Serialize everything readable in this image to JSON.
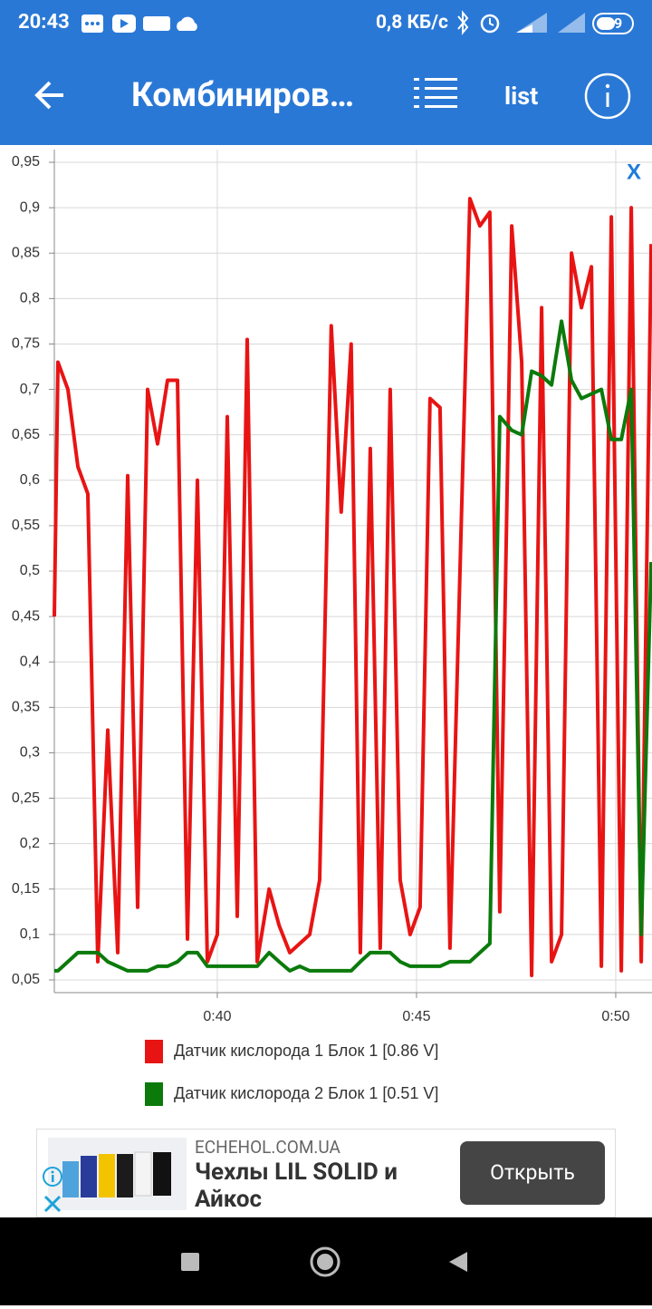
{
  "status_bar": {
    "time": "20:43",
    "speed": "0,8 КБ/с",
    "battery": "39"
  },
  "app_bar": {
    "title": "Комбиниров…",
    "list": "list"
  },
  "chart_close": "X",
  "ad": {
    "domain": "ECHEHOL.COM.UA",
    "headline": "Чехлы LIL SOLID и Айкос",
    "button": "Открыть"
  },
  "chart_data": {
    "type": "line",
    "x": [
      35.91,
      36,
      36.25,
      36.5,
      36.75,
      37,
      37.25,
      37.5,
      37.75,
      38,
      38.25,
      38.5,
      38.75,
      39,
      39.25,
      39.5,
      39.75,
      40,
      40.25,
      40.5,
      40.75,
      41,
      41.3,
      41.55,
      41.82,
      42.07,
      42.32,
      42.57,
      42.86,
      43.11,
      43.36,
      43.59,
      43.84,
      44.09,
      44.34,
      44.59,
      44.84,
      45.09,
      45.34,
      45.59,
      45.84,
      46.34,
      46.59,
      46.84,
      47.09,
      47.39,
      47.64,
      47.89,
      48.14,
      48.39,
      48.64,
      48.89,
      49.14,
      49.39,
      49.64,
      49.89,
      50.14,
      50.39,
      50.64,
      50.89
    ],
    "series": [
      {
        "name": "Датчик кислорода 1 Блок 1 [0.86 V]",
        "color": "#e81414",
        "values": [
          0.45,
          0.73,
          0.7,
          0.615,
          0.585,
          0.07,
          0.325,
          0.08,
          0.605,
          0.13,
          0.7,
          0.64,
          0.71,
          0.71,
          0.095,
          0.6,
          0.07,
          0.1,
          0.67,
          0.12,
          0.755,
          0.07,
          0.15,
          0.11,
          0.08,
          0.09,
          0.1,
          0.16,
          0.77,
          0.565,
          0.75,
          0.08,
          0.635,
          0.085,
          0.7,
          0.16,
          0.1,
          0.13,
          0.69,
          0.68,
          0.085,
          0.91,
          0.88,
          0.895,
          0.125,
          0.88,
          0.73,
          0.055,
          0.79,
          0.07,
          0.1,
          0.85,
          0.79,
          0.835,
          0.065,
          0.89,
          0.06,
          0.9,
          0.07,
          0.86
        ]
      },
      {
        "name": "Датчик кислорода 2 Блок 1 [0.51 V]",
        "color": "#0b7a0b",
        "values": [
          0.06,
          0.06,
          0.07,
          0.08,
          0.08,
          0.08,
          0.07,
          0.065,
          0.06,
          0.06,
          0.06,
          0.065,
          0.065,
          0.07,
          0.08,
          0.08,
          0.065,
          0.065,
          0.065,
          0.065,
          0.065,
          0.065,
          0.08,
          0.07,
          0.06,
          0.065,
          0.06,
          0.06,
          0.06,
          0.06,
          0.06,
          0.07,
          0.08,
          0.08,
          0.08,
          0.07,
          0.065,
          0.065,
          0.065,
          0.065,
          0.07,
          0.07,
          0.08,
          0.09,
          0.67,
          0.655,
          0.65,
          0.72,
          0.715,
          0.705,
          0.775,
          0.71,
          0.69,
          0.695,
          0.7,
          0.645,
          0.645,
          0.7,
          0.1,
          0.51
        ]
      }
    ],
    "xlim": [
      35.91,
      50.91
    ],
    "xticks": [
      {
        "value": 40,
        "label": "0:40"
      },
      {
        "value": 45,
        "label": "0:45"
      },
      {
        "value": 50,
        "label": "0:50"
      }
    ],
    "ylim": [
      0.036,
      0.964
    ],
    "yticks": [
      {
        "value": 0.05,
        "label": "0,05"
      },
      {
        "value": 0.1,
        "label": "0,1"
      },
      {
        "value": 0.15,
        "label": "0,15"
      },
      {
        "value": 0.2,
        "label": "0,2"
      },
      {
        "value": 0.25,
        "label": "0,25"
      },
      {
        "value": 0.3,
        "label": "0,3"
      },
      {
        "value": 0.35,
        "label": "0,35"
      },
      {
        "value": 0.4,
        "label": "0,4"
      },
      {
        "value": 0.45,
        "label": "0,45"
      },
      {
        "value": 0.5,
        "label": "0,5"
      },
      {
        "value": 0.55,
        "label": "0,55"
      },
      {
        "value": 0.6,
        "label": "0,6"
      },
      {
        "value": 0.65,
        "label": "0,65"
      },
      {
        "value": 0.7,
        "label": "0,7"
      },
      {
        "value": 0.75,
        "label": "0,75"
      },
      {
        "value": 0.8,
        "label": "0,8"
      },
      {
        "value": 0.85,
        "label": "0,85"
      },
      {
        "value": 0.9,
        "label": "0,9"
      },
      {
        "value": 0.95,
        "label": "0,95"
      }
    ],
    "grid": true
  }
}
